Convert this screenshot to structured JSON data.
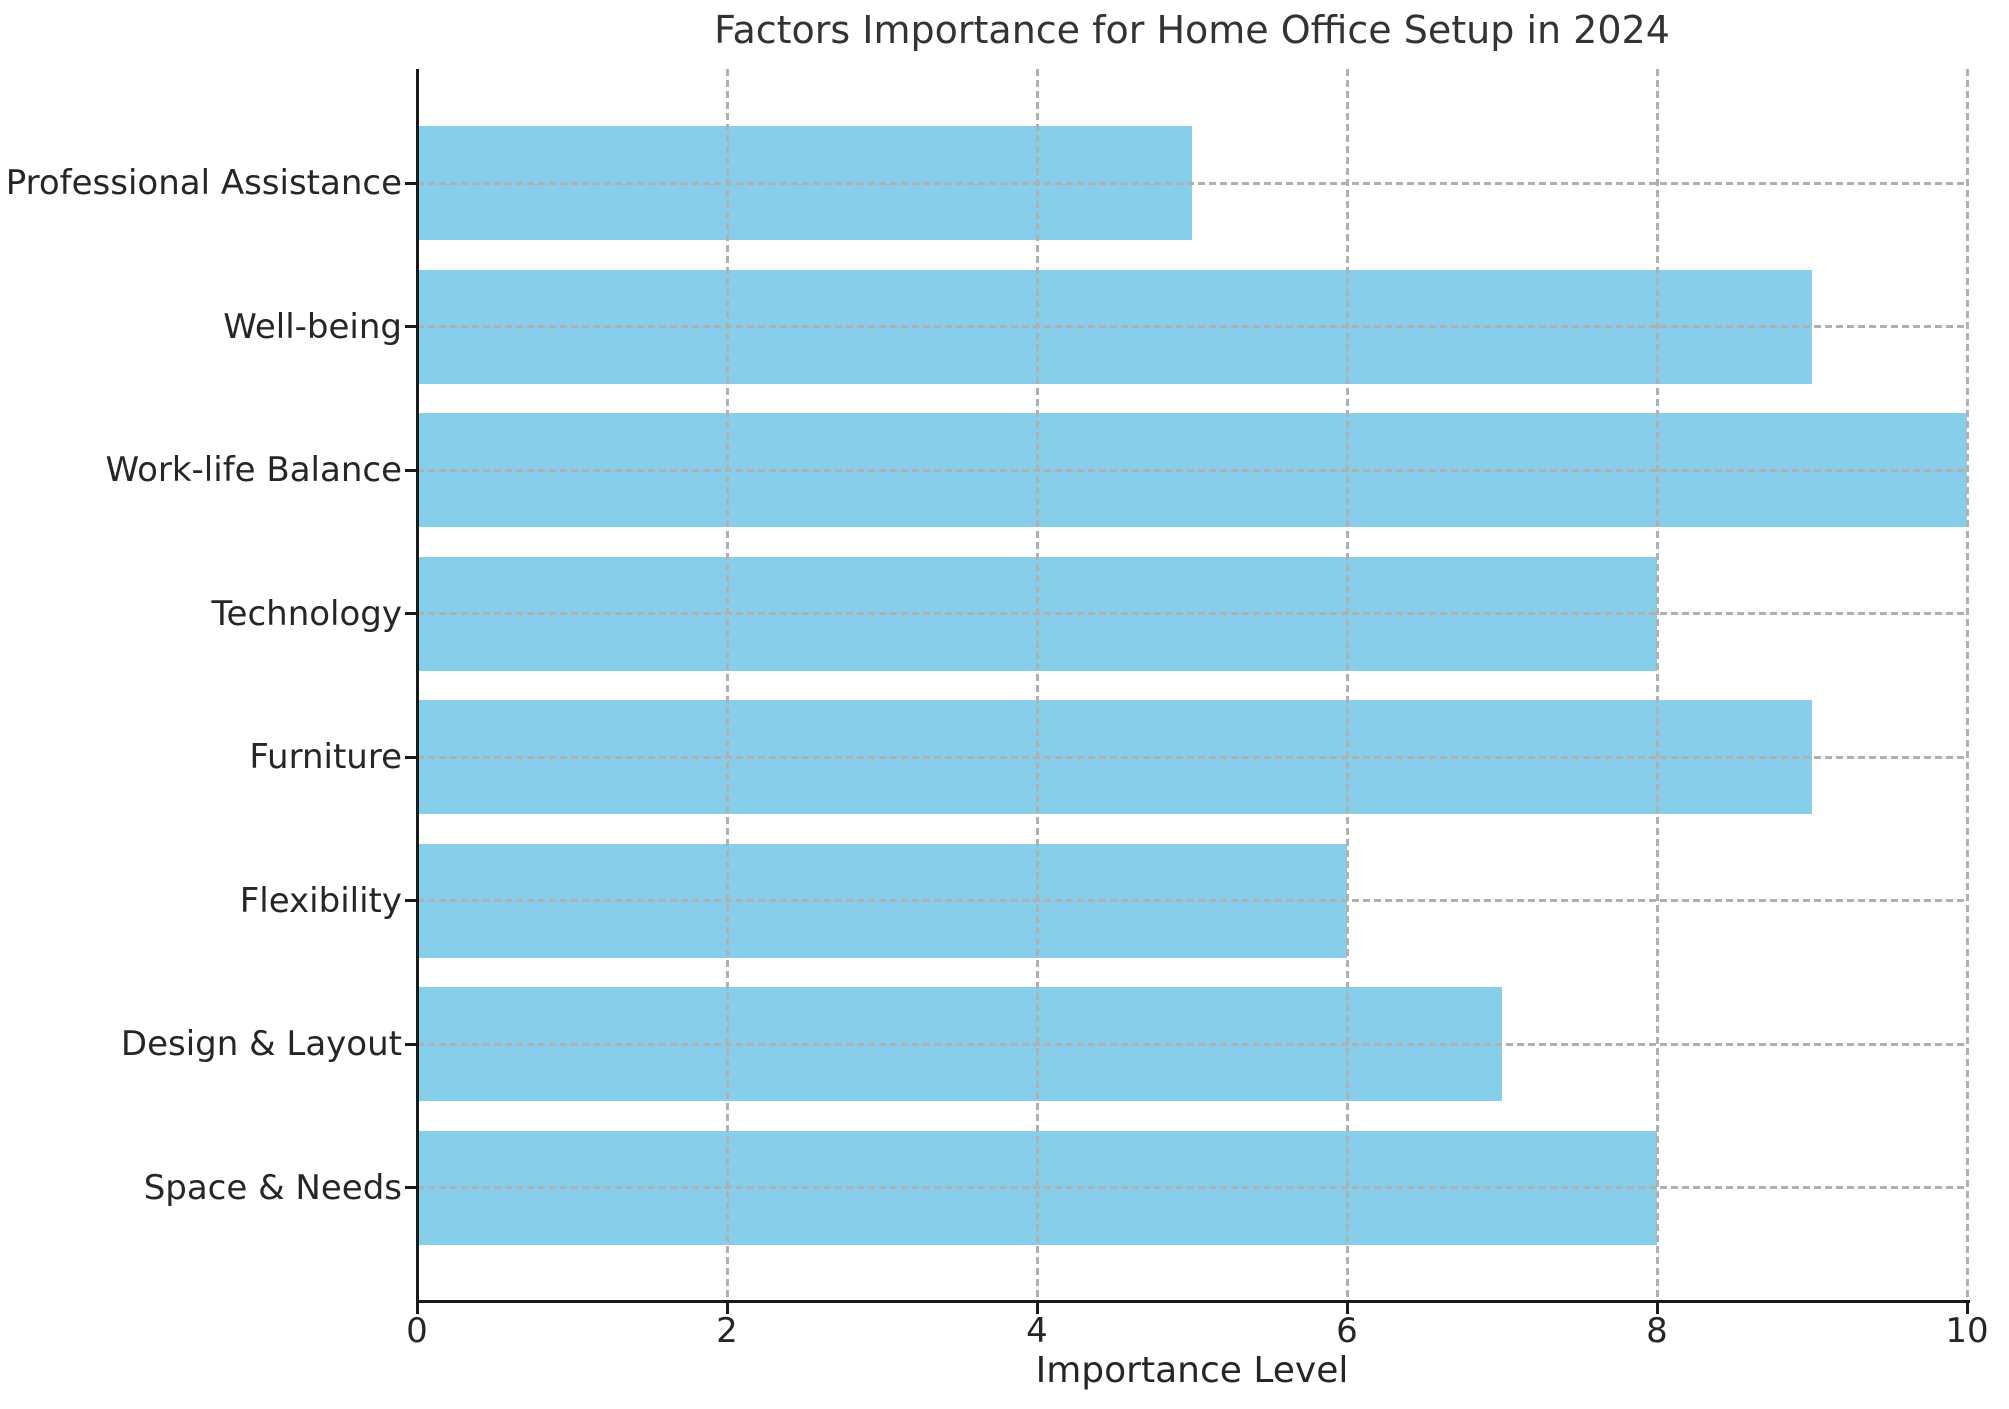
{
  "figure": {
    "background": "#ffffff"
  },
  "chart_data": {
    "type": "bar",
    "orientation": "horizontal",
    "title": "Factors Importance for Home Office Setup in 2024",
    "xlabel": "Importance Level",
    "ylabel": "",
    "categories": [
      "Professional Assistance",
      "Well-being",
      "Work-life Balance",
      "Technology",
      "Furniture",
      "Flexibility",
      "Design & Layout",
      "Space & Needs"
    ],
    "values": [
      5,
      9,
      10,
      8,
      9,
      6,
      7,
      8
    ],
    "xlim": [
      0,
      10
    ],
    "xticks": [
      0,
      2,
      4,
      6,
      8,
      10
    ],
    "grid": "dashed, both axes, drawn over bars",
    "legend_position": "none",
    "colors": {
      "bar": "#87CEEB",
      "grid": "#b0b0b0",
      "axis": "#1a1a1a",
      "text": "#262626",
      "title_text": "#333333"
    }
  }
}
